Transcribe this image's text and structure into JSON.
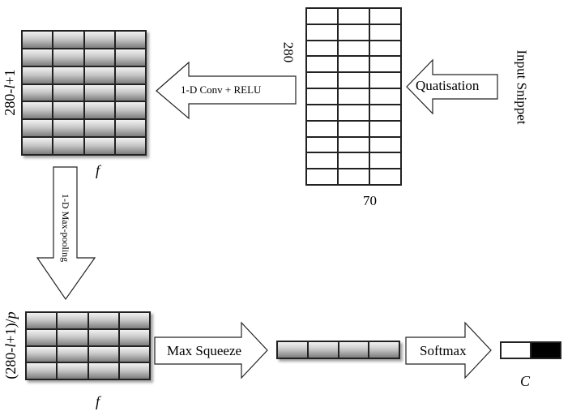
{
  "input": {
    "label": "Input Snippet",
    "height_label": "280",
    "width_label": "70",
    "rows": 11,
    "cols": 3
  },
  "steps": {
    "quantisation": "Quatisation",
    "conv": "1-D Conv + RELU",
    "maxpool": "1-D Max-pooling",
    "squeeze": "Max Squeeze",
    "softmax": "Softmax"
  },
  "conv_output": {
    "height_label": "280-l+1",
    "width_label": "f",
    "rows": 7,
    "cols": 4
  },
  "pool_output": {
    "height_label": "(280-l+1)/p",
    "width_label": "f",
    "rows": 4,
    "cols": 4
  },
  "squeezed": {
    "cols": 4
  },
  "output": {
    "label": "C",
    "cells": 2
  },
  "colors": {
    "line": "#222222",
    "cell_light": "#f2f2f2",
    "cell_dark": "#7d7d7d",
    "output_filled": "#000000"
  }
}
